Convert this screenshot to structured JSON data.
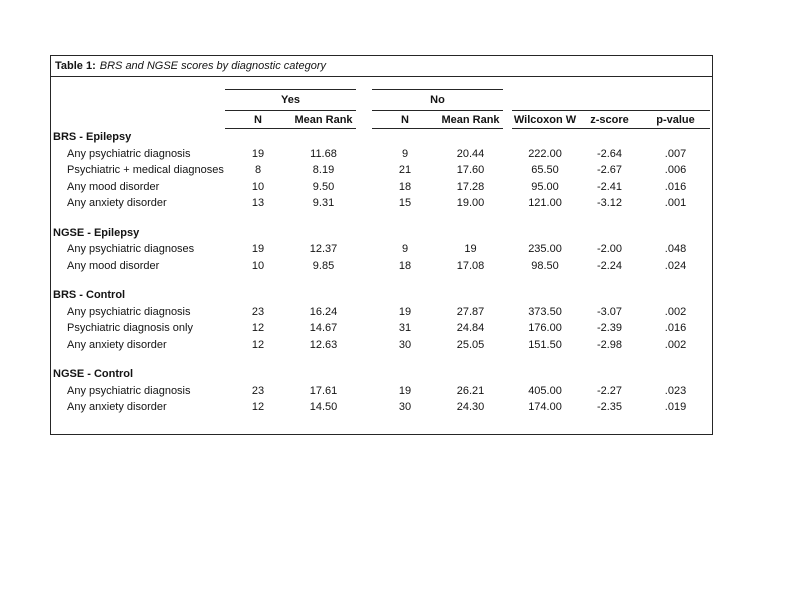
{
  "table": {
    "title_prefix": "Table 1:",
    "title_rest": "BRS and NGSE scores by diagnostic category",
    "col_groups": {
      "yes": "Yes",
      "no": "No"
    },
    "columns": {
      "yes_n": "N",
      "yes_mean_rank": "Mean Rank",
      "no_n": "N",
      "no_mean_rank": "Mean Rank",
      "wilcoxon": "Wilcoxon W",
      "zscore": "z-score",
      "pvalue": "p-value"
    },
    "sections": [
      {
        "header": "BRS - Epilepsy",
        "rows": [
          {
            "label": "Any psychiatric diagnosis",
            "values": [
              "19",
              "11.68",
              "9",
              "20.44",
              "222.00",
              "-2.64",
              ".007"
            ]
          },
          {
            "label": "Psychiatric + medical diagnoses",
            "values": [
              "8",
              "8.19",
              "21",
              "17.60",
              "65.50",
              "-2.67",
              ".006"
            ]
          },
          {
            "label": "Any mood disorder",
            "values": [
              "10",
              "9.50",
              "18",
              "17.28",
              "95.00",
              "-2.41",
              ".016"
            ]
          },
          {
            "label": "Any anxiety disorder",
            "values": [
              "13",
              "9.31",
              "15",
              "19.00",
              "121.00",
              "-3.12",
              ".001"
            ]
          }
        ]
      },
      {
        "header": "NGSE - Epilepsy",
        "rows": [
          {
            "label": "Any psychiatric diagnoses",
            "values": [
              "19",
              "12.37",
              "9",
              "19",
              "235.00",
              "-2.00",
              ".048"
            ]
          },
          {
            "label": "Any mood disorder",
            "values": [
              "10",
              "9.85",
              "18",
              "17.08",
              "98.50",
              "-2.24",
              ".024"
            ]
          }
        ]
      },
      {
        "header": "BRS - Control",
        "rows": [
          {
            "label": "Any psychiatric diagnosis",
            "values": [
              "23",
              "16.24",
              "19",
              "27.87",
              "373.50",
              "-3.07",
              ".002"
            ]
          },
          {
            "label": "Psychiatric diagnosis only",
            "values": [
              "12",
              "14.67",
              "31",
              "24.84",
              "176.00",
              "-2.39",
              ".016"
            ]
          },
          {
            "label": "Any anxiety disorder",
            "values": [
              "12",
              "12.63",
              "30",
              "25.05",
              "151.50",
              "-2.98",
              ".002"
            ]
          }
        ]
      },
      {
        "header": "NGSE - Control",
        "rows": [
          {
            "label": "Any psychiatric diagnosis",
            "values": [
              "23",
              "17.61",
              "19",
              "26.21",
              "405.00",
              "-2.27",
              ".023"
            ]
          },
          {
            "label": "Any anxiety disorder",
            "values": [
              "12",
              "14.50",
              "30",
              "24.30",
              "174.00",
              "-2.35",
              ".019"
            ]
          }
        ]
      }
    ]
  }
}
